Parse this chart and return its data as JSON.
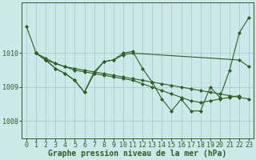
{
  "background_color": "#cce8e8",
  "grid_color": "#aacccc",
  "line_color": "#2d6020",
  "marker_color": "#2d6020",
  "xlabel": "Graphe pression niveau de la mer (hPa)",
  "xlabel_fontsize": 7,
  "tick_fontsize": 6,
  "ylim": [
    1007.5,
    1011.5
  ],
  "yticks": [
    1008,
    1009,
    1010
  ],
  "xlim": [
    -0.5,
    23.5
  ],
  "xticks": [
    0,
    1,
    2,
    3,
    4,
    5,
    6,
    7,
    8,
    9,
    10,
    11,
    12,
    13,
    14,
    15,
    16,
    17,
    18,
    19,
    20,
    21,
    22,
    23
  ],
  "series": [
    {
      "x": [
        0,
        1,
        2,
        3,
        4,
        5,
        6,
        7,
        8,
        9,
        10,
        11,
        12,
        13,
        14,
        15,
        16,
        17,
        18,
        19,
        20,
        21,
        22,
        23
      ],
      "y": [
        1010.8,
        1010.0,
        1009.8,
        1009.7,
        1009.6,
        1009.55,
        1009.5,
        1009.45,
        1009.4,
        1009.35,
        1009.3,
        1009.25,
        1009.2,
        1009.15,
        1009.1,
        1009.05,
        1009.0,
        1008.95,
        1008.9,
        1008.85,
        1008.8,
        1008.75,
        1008.7,
        1008.65
      ]
    },
    {
      "x": [
        1,
        2,
        3,
        4,
        5,
        6,
        7,
        8,
        9,
        10,
        11,
        22,
        23
      ],
      "y": [
        1010.0,
        1009.8,
        1009.55,
        1009.4,
        1009.2,
        1008.85,
        1009.45,
        1009.75,
        1009.8,
        1009.95,
        1010.0,
        1009.8,
        1009.6
      ]
    },
    {
      "x": [
        1,
        2,
        3,
        4,
        5,
        6,
        7,
        8,
        9,
        10,
        11,
        12,
        13,
        14,
        15,
        16,
        17,
        18,
        19,
        20,
        21,
        22,
        23
      ],
      "y": [
        1010.0,
        1009.8,
        1009.55,
        1009.4,
        1009.2,
        1008.85,
        1009.4,
        1009.75,
        1009.8,
        1010.0,
        1010.05,
        1009.55,
        1009.15,
        1008.65,
        1008.3,
        1008.65,
        1008.3,
        1008.3,
        1009.0,
        1008.7,
        1009.5,
        1010.6,
        1011.05
      ]
    },
    {
      "x": [
        1,
        2,
        3,
        4,
        5,
        6,
        7,
        8,
        9,
        10,
        11,
        12,
        13,
        14,
        15,
        16,
        17,
        18,
        19,
        20,
        21,
        22
      ],
      "y": [
        1010.0,
        1009.85,
        1009.7,
        1009.6,
        1009.5,
        1009.45,
        1009.4,
        1009.35,
        1009.3,
        1009.25,
        1009.2,
        1009.1,
        1009.0,
        1008.9,
        1008.8,
        1008.7,
        1008.6,
        1008.55,
        1008.6,
        1008.65,
        1008.7,
        1008.75
      ]
    }
  ]
}
